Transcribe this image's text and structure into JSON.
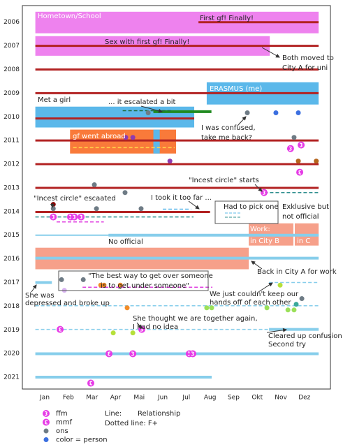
{
  "chart_data": {
    "type": "timeline",
    "xlim": [
      0.05,
      13.1
    ],
    "ylim": [
      2005.3,
      2021.5
    ],
    "xticks": [
      {
        "value": 1,
        "label": "Jan"
      },
      {
        "value": 2,
        "label": "Feb"
      },
      {
        "value": 3,
        "label": "Mar"
      },
      {
        "value": 4,
        "label": "Apr"
      },
      {
        "value": 5,
        "label": "Mai"
      },
      {
        "value": 6,
        "label": "Jun"
      },
      {
        "value": 7,
        "label": "Jul"
      },
      {
        "value": 8,
        "label": "Aug"
      },
      {
        "value": 9,
        "label": "Sep"
      },
      {
        "value": 10,
        "label": "Okt"
      },
      {
        "value": 11,
        "label": "Nov"
      },
      {
        "value": 12,
        "label": "Dez"
      }
    ],
    "yticks": [
      2006,
      2007,
      2008,
      2009,
      2010,
      2011,
      2012,
      2013,
      2014,
      2015,
      2016,
      2017,
      2018,
      2019,
      2020,
      2021
    ],
    "periods": [
      {
        "x": [
          0.6,
          12.6
        ],
        "y": [
          2005.56,
          2006.47
        ],
        "color": "#ee82ee"
      },
      {
        "x": [
          0.6,
          10.53
        ],
        "y": [
          2006.59,
          2007.42
        ],
        "color": "#ee82ee"
      },
      {
        "x": [
          7.86,
          12.6
        ],
        "y": [
          2008.54,
          2009.48
        ],
        "color": "#5bb8ea"
      },
      {
        "x": [
          0.6,
          7.33
        ],
        "y": [
          2009.57,
          2010.45
        ],
        "color": "#5bb8ea"
      },
      {
        "x": [
          2.07,
          6.56
        ],
        "y": [
          2010.54,
          2011.55
        ],
        "color": "#f97a3a"
      },
      {
        "x": [
          5.6,
          5.87
        ],
        "y": [
          2010.54,
          2011.55
        ],
        "color": "#5bb8ea"
      },
      {
        "x": [
          9.64,
          11.53
        ],
        "y": [
          2014.5,
          2015.44
        ],
        "color": "#f6a08a"
      },
      {
        "x": [
          11.59,
          12.6
        ],
        "y": [
          2014.5,
          2015.44
        ],
        "color": "#f6a08a"
      },
      {
        "x": [
          0.6,
          9.64
        ],
        "y": [
          2015.53,
          2016.44
        ],
        "color": "#f6a08a"
      }
    ],
    "lines": [
      {
        "x": [
          7.51,
          12.6
        ],
        "year": 2006,
        "color": "#b22222",
        "width": 3,
        "dashed": false
      },
      {
        "x": [
          0.6,
          12.6
        ],
        "year": 2007,
        "color": "#b22222",
        "width": 3,
        "dashed": false
      },
      {
        "x": [
          0.6,
          12.6
        ],
        "year": 2008,
        "color": "#b22222",
        "width": 3,
        "dashed": false
      },
      {
        "x": [
          0.6,
          12.6
        ],
        "year": 2009,
        "color": "#b22222",
        "width": 3,
        "dashed": false
      },
      {
        "x": [
          0.6,
          7.33
        ],
        "year": 2010.07,
        "color": "#b22222",
        "width": 3,
        "dashed": false
      },
      {
        "x": [
          5.6,
          8.06
        ],
        "year": 2009.78,
        "color": "#1f8a1f",
        "width": 4,
        "dashed": false
      },
      {
        "x": [
          4.3,
          6.4
        ],
        "year": 2009.74,
        "color": "#1f6b3a",
        "width": 1.5,
        "dashed": true
      },
      {
        "x": [
          0.6,
          12.6
        ],
        "year": 2011,
        "color": "#b22222",
        "width": 3,
        "dashed": false
      },
      {
        "x": [
          2.2,
          6.5
        ],
        "year": 2011.3,
        "color": "#ffd24a",
        "width": 1.5,
        "dashed": true
      },
      {
        "x": [
          0.6,
          12.6
        ],
        "year": 2012,
        "color": "#b22222",
        "width": 3,
        "dashed": false
      },
      {
        "x": [
          0.6,
          12.6
        ],
        "year": 2013,
        "color": "#b22222",
        "width": 3,
        "dashed": false
      },
      {
        "x": [
          10.3,
          12.6
        ],
        "year": 2013.2,
        "color": "#2f8f8f",
        "width": 1.5,
        "dashed": true
      },
      {
        "x": [
          0.6,
          8.0
        ],
        "year": 2014.02,
        "color": "#b22222",
        "width": 3,
        "dashed": false
      },
      {
        "x": [
          6.0,
          7.2
        ],
        "year": 2013.9,
        "color": "#5bb8ea",
        "width": 1.5,
        "dashed": true
      },
      {
        "x": [
          0.6,
          7.3
        ],
        "year": 2014.23,
        "color": "#2f8f8f",
        "width": 1.5,
        "dashed": true
      },
      {
        "x": [
          1.5,
          3.5
        ],
        "year": 2014.44,
        "color": "#e040e0",
        "width": 1.5,
        "dashed": true
      },
      {
        "x": [
          0.6,
          12.6
        ],
        "year": 2015,
        "color": "#87ceeb",
        "width": 2,
        "dashed": false
      },
      {
        "x": [
          3.7,
          12.6
        ],
        "year": 2015,
        "color": "#87ceeb",
        "width": 4,
        "dashed": false
      },
      {
        "x": [
          0.6,
          12.6
        ],
        "year": 2015.97,
        "color": "#87ceeb",
        "width": 4,
        "dashed": false
      },
      {
        "x": [
          0.6,
          1.3
        ],
        "year": 2017,
        "color": "#87ceeb",
        "width": 4,
        "dashed": false
      },
      {
        "x": [
          10.5,
          12.6
        ],
        "year": 2017,
        "color": "#87ceeb",
        "width": 1.5,
        "dashed": true
      },
      {
        "x": [
          2.6,
          8.1
        ],
        "year": 2017.2,
        "color": "#e040e0",
        "width": 1.5,
        "dashed": true
      },
      {
        "x": [
          0.6,
          12.6
        ],
        "year": 2017.98,
        "color": "#87ceeb",
        "width": 1.5,
        "dashed": true
      },
      {
        "x": [
          0.6,
          10.5
        ],
        "year": 2018.98,
        "color": "#87ceeb",
        "width": 1.5,
        "dashed": true
      },
      {
        "x": [
          10.5,
          12.6
        ],
        "year": 2018.98,
        "color": "#87ceeb",
        "width": 4,
        "dashed": false
      },
      {
        "x": [
          0.6,
          12.6
        ],
        "year": 2020.01,
        "color": "#87ceeb",
        "width": 4,
        "dashed": false
      },
      {
        "x": [
          0.6,
          8.07
        ],
        "year": 2021,
        "color": "#87ceeb",
        "width": 4,
        "dashed": false
      }
    ],
    "events": [
      {
        "x": 5.38,
        "year": 2009.83,
        "kind": "ons",
        "color": "#6e7b85"
      },
      {
        "x": 9.58,
        "year": 2009.83,
        "kind": "ons",
        "color": "#6e7b85"
      },
      {
        "x": 10.79,
        "year": 2009.83,
        "kind": "person",
        "color": "#3b6fe0"
      },
      {
        "x": 11.74,
        "year": 2009.83,
        "kind": "person",
        "color": "#3b6fe0"
      },
      {
        "x": 4.43,
        "year": 2010.87,
        "kind": "person",
        "color": "#8e3bb0"
      },
      {
        "x": 4.73,
        "year": 2010.87,
        "kind": "person",
        "color": "#8e3bb0"
      },
      {
        "x": 11.56,
        "year": 2010.87,
        "kind": "ons",
        "color": "#6e7b85"
      },
      {
        "x": 11.41,
        "year": 2011.34,
        "kind": "ffm",
        "color": "#e63be6"
      },
      {
        "x": 11.86,
        "year": 2011.19,
        "kind": "ffm",
        "color": "#e63be6"
      },
      {
        "x": 6.3,
        "year": 2011.87,
        "kind": "person",
        "color": "#8e3bb0"
      },
      {
        "x": 11.74,
        "year": 2011.87,
        "kind": "person",
        "color": "#b5651d"
      },
      {
        "x": 12.5,
        "year": 2011.87,
        "kind": "person",
        "color": "#b5651d"
      },
      {
        "x": 11.8,
        "year": 2012.34,
        "kind": "mmf",
        "color": "#e63be6"
      },
      {
        "x": 3.1,
        "year": 2012.87,
        "kind": "ons",
        "color": "#6e7b85"
      },
      {
        "x": 4.4,
        "year": 2013.2,
        "kind": "ons",
        "color": "#6e7b85"
      },
      {
        "x": 10.29,
        "year": 2013.2,
        "kind": "ffm",
        "color": "#e63be6"
      },
      {
        "x": 1.36,
        "year": 2013.7,
        "kind": "person",
        "color": "#8b0000"
      },
      {
        "x": 1.36,
        "year": 2013.88,
        "kind": "ons",
        "color": "#6e7b85"
      },
      {
        "x": 3.19,
        "year": 2013.88,
        "kind": "ons",
        "color": "#6e7b85"
      },
      {
        "x": 5.08,
        "year": 2013.88,
        "kind": "ons",
        "color": "#6e7b85"
      },
      {
        "x": 1.36,
        "year": 2014.23,
        "kind": "ffm",
        "color": "#e63be6"
      },
      {
        "x": 2.09,
        "year": 2014.23,
        "kind": "ffm",
        "color": "#e63be6"
      },
      {
        "x": 2.25,
        "year": 2014.23,
        "kind": "ffm",
        "color": "#e63be6"
      },
      {
        "x": 2.54,
        "year": 2014.23,
        "kind": "ffm",
        "color": "#e63be6"
      },
      {
        "x": 1.71,
        "year": 2016.88,
        "kind": "ons",
        "color": "#6e7b85"
      },
      {
        "x": 1.83,
        "year": 2017.33,
        "kind": "person",
        "color": "#d8b4f0"
      },
      {
        "x": 2.63,
        "year": 2016.88,
        "kind": "ons",
        "color": "#6e7b85"
      },
      {
        "x": 3.37,
        "year": 2017.11,
        "kind": "person",
        "color": "#f28c28"
      },
      {
        "x": 3.51,
        "year": 2017.11,
        "kind": "person",
        "color": "#f28c28"
      },
      {
        "x": 4.2,
        "year": 2017.11,
        "kind": "person",
        "color": "#f28c28"
      },
      {
        "x": 10.97,
        "year": 2017.11,
        "kind": "person",
        "color": "#b6e03a"
      },
      {
        "x": 4.49,
        "year": 2018.07,
        "kind": "person",
        "color": "#f28c28"
      },
      {
        "x": 7.86,
        "year": 2018.07,
        "kind": "person",
        "color": "#9be05a"
      },
      {
        "x": 8.07,
        "year": 2018.07,
        "kind": "person",
        "color": "#9be05a"
      },
      {
        "x": 10.41,
        "year": 2018.07,
        "kind": "person",
        "color": "#9be05a"
      },
      {
        "x": 11.3,
        "year": 2018.16,
        "kind": "person",
        "color": "#9be05a"
      },
      {
        "x": 11.56,
        "year": 2018.16,
        "kind": "person",
        "color": "#9be05a"
      },
      {
        "x": 11.65,
        "year": 2017.92,
        "kind": "person",
        "color": "#3aa89a"
      },
      {
        "x": 11.89,
        "year": 2017.68,
        "kind": "ons",
        "color": "#6e7b85"
      },
      {
        "x": 1.65,
        "year": 2018.98,
        "kind": "mmf",
        "color": "#e63be6"
      },
      {
        "x": 3.9,
        "year": 2019.13,
        "kind": "person",
        "color": "#b6e03a"
      },
      {
        "x": 4.73,
        "year": 2019.13,
        "kind": "person",
        "color": "#b6e03a"
      },
      {
        "x": 5.11,
        "year": 2018.98,
        "kind": "ffm",
        "color": "#e63be6"
      },
      {
        "x": 3.72,
        "year": 2020.01,
        "kind": "mmf",
        "color": "#e63be6"
      },
      {
        "x": 4.73,
        "year": 2020.01,
        "kind": "ffm",
        "color": "#e63be6"
      },
      {
        "x": 7.12,
        "year": 2020.01,
        "kind": "ffm",
        "color": "#e63be6"
      },
      {
        "x": 7.27,
        "year": 2020.01,
        "kind": "ffm",
        "color": "#e63be6"
      },
      {
        "x": 2.95,
        "year": 2021.25,
        "kind": "mmf",
        "color": "#e63be6"
      }
    ],
    "annotations": [
      "Hometown/School",
      "First gf! Finally!",
      "Sex with first gf! Finally!",
      "Both moved to",
      "City A for uni",
      "ERASMUS (me)",
      "Met a girl",
      "... it escalated a bit",
      "I was confused,",
      "take me back?",
      "gf went abroad",
      "\"Incest circle\" starts",
      "\"Incest circle\" escaated",
      "I took it too far ...",
      "Had to pick one",
      "Exklusive but",
      "not official",
      "Work:",
      "in City B",
      "in C",
      "No official",
      "Back in City A for work",
      "\"The best way to get over someone",
      "is to get under someone\"",
      "She was",
      "depressed and broke up",
      "We just couldn't keep our",
      "hands off of each other",
      "She thought we are together again,",
      "I had no idea",
      "Cleared up confusion",
      "Second try"
    ],
    "legend": [
      {
        "label": "ffm",
        "kind": "ffm",
        "color": "#e63be6"
      },
      {
        "label": "mmf",
        "kind": "mmf",
        "color": "#e63be6"
      },
      {
        "label": "ons",
        "kind": "ons",
        "color": "#6e7b85"
      },
      {
        "label": "color = person",
        "kind": "person",
        "color": "#3b6fe0"
      }
    ],
    "notes": [
      "Line:",
      "Relationship",
      "Dotted line: F+"
    ]
  }
}
